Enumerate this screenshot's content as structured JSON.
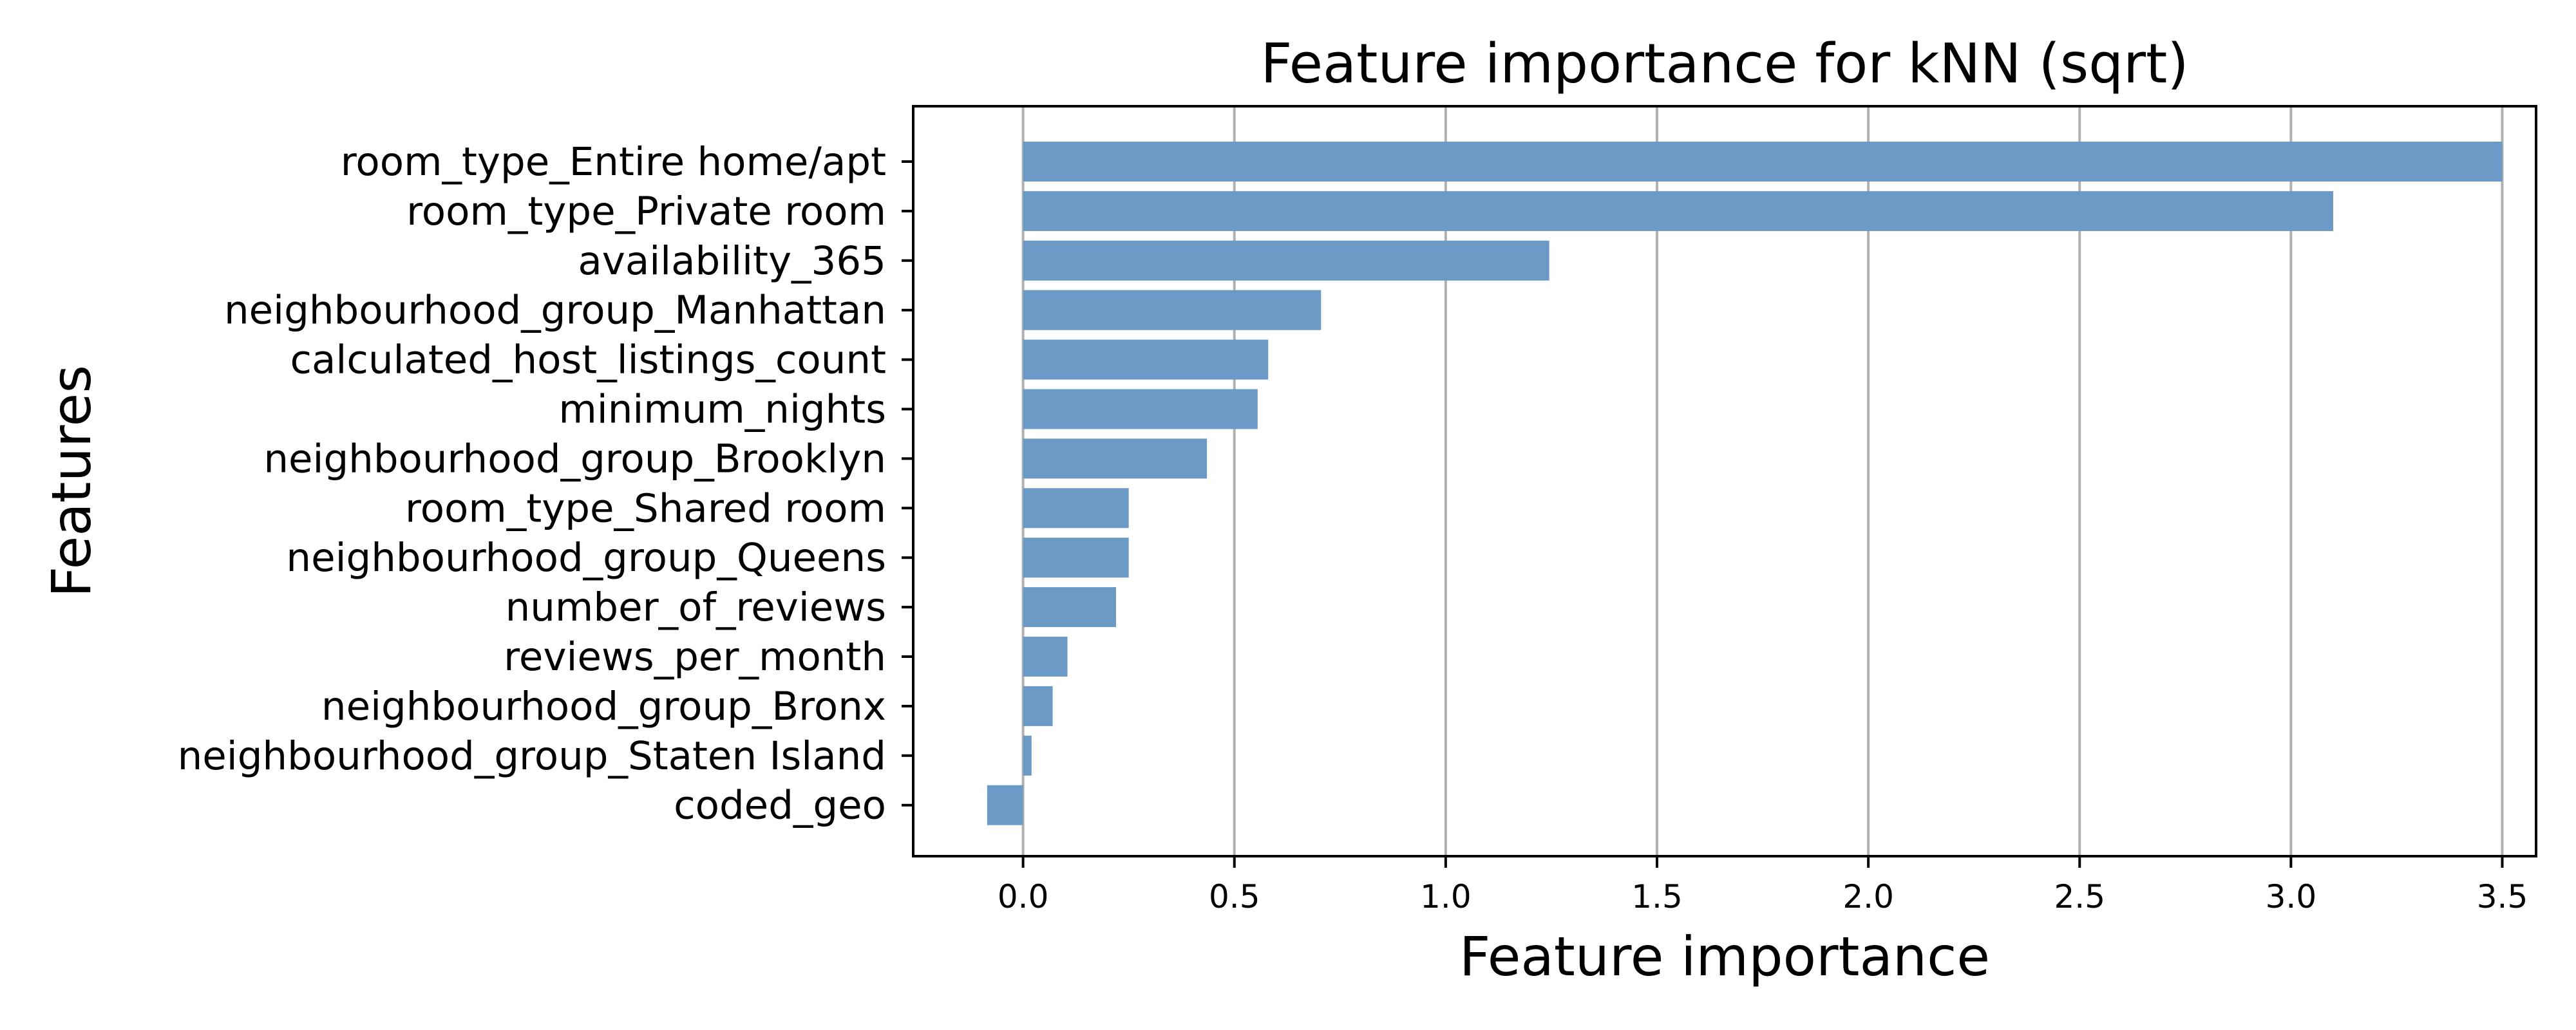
{
  "chart_data": {
    "type": "bar",
    "orientation": "horizontal",
    "title": "Feature importance for kNN (sqrt)",
    "xlabel": "Feature importance",
    "ylabel": "Features",
    "xlim": [
      -0.26,
      3.58
    ],
    "xticks": [
      0.0,
      0.5,
      1.0,
      1.5,
      2.0,
      2.5,
      3.0,
      3.5
    ],
    "xtick_labels": [
      "0.0",
      "0.5",
      "1.0",
      "1.5",
      "2.0",
      "2.5",
      "3.0",
      "3.5"
    ],
    "grid": "x",
    "bar_color": "#6a9ac5",
    "categories": [
      "room_type_Entire home/apt",
      "room_type_Private room",
      "availability_365",
      "neighbourhood_group_Manhattan",
      "calculated_host_listings_count",
      "minimum_nights",
      "neighbourhood_group_Brooklyn",
      "room_type_Shared room",
      "neighbourhood_group_Queens",
      "number_of_reviews",
      "reviews_per_month",
      "neighbourhood_group_Bronx",
      "neighbourhood_group_Staten Island",
      "coded_geo"
    ],
    "values": [
      3.5,
      3.1,
      1.245,
      0.705,
      0.58,
      0.555,
      0.435,
      0.25,
      0.25,
      0.22,
      0.105,
      0.07,
      0.02,
      -0.085
    ]
  }
}
